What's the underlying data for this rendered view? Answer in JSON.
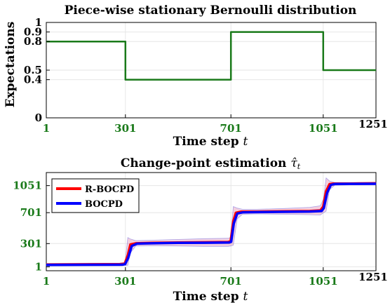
{
  "colors": {
    "green": "#1a7a1a",
    "tick_black": "#000000",
    "rbocpd": "#ff0000",
    "bocpd": "#0000ff",
    "band_red": "#d04080",
    "band_blue": "#6060e0",
    "axis": "#000000",
    "grid": "#e6e6e6"
  },
  "chart_data": [
    {
      "type": "line",
      "title": "Piece-wise stationary Bernoulli distribution",
      "xlabel": "Time step",
      "xlabel_var": "t",
      "ylabel": "Expectations",
      "xlim": [
        1,
        1251
      ],
      "ylim": [
        0,
        1
      ],
      "xticks": [
        1,
        301,
        701,
        1051,
        1251
      ],
      "xtick_labels": [
        "1",
        "301",
        "701",
        "1051",
        "1251"
      ],
      "xtick_green": [
        true,
        true,
        true,
        true,
        false
      ],
      "yticks": [
        0,
        0.4,
        0.5,
        0.8,
        0.9,
        1
      ],
      "ytick_labels": [
        "0",
        "0.4",
        "0.5",
        "0.8",
        "0.9",
        "1"
      ],
      "grid": true,
      "series": [
        {
          "color": "green",
          "x": [
            1,
            301,
            301,
            701,
            701,
            1051,
            1051,
            1251
          ],
          "y": [
            0.8,
            0.8,
            0.4,
            0.4,
            0.9,
            0.9,
            0.5,
            0.5
          ]
        }
      ]
    },
    {
      "type": "line",
      "title": "Change-point estimation",
      "title_var": "τ̂",
      "title_sub": "t",
      "xlabel": "Time step",
      "xlabel_var": "t",
      "xlim": [
        1,
        1251
      ],
      "ylim": [
        -50,
        1220
      ],
      "xticks": [
        1,
        301,
        701,
        1051,
        1251
      ],
      "xtick_labels": [
        "1",
        "301",
        "701",
        "1051",
        "1251"
      ],
      "xtick_green": [
        true,
        true,
        true,
        true,
        false
      ],
      "yticks": [
        1,
        301,
        701,
        1051
      ],
      "ytick_labels": [
        "1",
        "301",
        "701",
        "1051"
      ],
      "grid": true,
      "legend": "top-left",
      "series": [
        {
          "name": "R-BOCPD",
          "color": "rbocpd",
          "x": [
            1,
            280,
            298,
            310,
            320,
            340,
            400,
            500,
            600,
            690,
            700,
            710,
            720,
            740,
            800,
            900,
            1000,
            1040,
            1051,
            1062,
            1075,
            1090,
            1150,
            1251
          ],
          "y": [
            30,
            35,
            40,
            150,
            290,
            305,
            310,
            315,
            318,
            322,
            330,
            590,
            700,
            715,
            715,
            718,
            722,
            730,
            780,
            980,
            1070,
            1078,
            1078,
            1080
          ]
        },
        {
          "name": "BOCPD",
          "color": "bocpd",
          "x": [
            1,
            290,
            300,
            312,
            325,
            345,
            400,
            500,
            600,
            695,
            702,
            712,
            725,
            745,
            800,
            900,
            1000,
            1045,
            1053,
            1066,
            1080,
            1095,
            1150,
            1251
          ],
          "y": [
            25,
            28,
            35,
            120,
            270,
            300,
            305,
            310,
            312,
            316,
            325,
            560,
            690,
            705,
            708,
            712,
            716,
            722,
            760,
            960,
            1060,
            1072,
            1074,
            1075
          ]
        }
      ],
      "band": {
        "x": [
          1,
          280,
          300,
          310,
          320,
          340,
          400,
          500,
          600,
          690,
          700,
          710,
          725,
          745,
          800,
          900,
          1000,
          1040,
          1052,
          1062,
          1075,
          1095,
          1150,
          1251
        ],
        "upper": [
          45,
          50,
          60,
          380,
          360,
          340,
          345,
          355,
          365,
          370,
          380,
          780,
          760,
          745,
          745,
          755,
          770,
          790,
          880,
          1150,
          1110,
          1090,
          1090,
          1095
        ],
        "lower": [
          15,
          15,
          20,
          20,
          180,
          270,
          275,
          270,
          265,
          265,
          270,
          280,
          620,
          680,
          685,
          680,
          675,
          670,
          700,
          720,
          1000,
          1055,
          1060,
          1060
        ]
      }
    }
  ]
}
